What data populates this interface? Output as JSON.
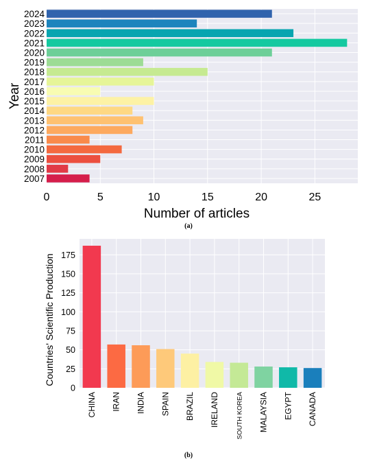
{
  "chart_data": [
    {
      "type": "bar",
      "orientation": "horizontal",
      "panel_label": "(a)",
      "title": "",
      "xlabel": "Number of articles",
      "ylabel": "Year",
      "categories": [
        "2024",
        "2023",
        "2022",
        "2021",
        "2020",
        "2019",
        "2018",
        "2017",
        "2016",
        "2015",
        "2014",
        "2013",
        "2012",
        "2011",
        "2010",
        "2009",
        "2008",
        "2007"
      ],
      "values": [
        21,
        14,
        23,
        28,
        21,
        9,
        15,
        10,
        5,
        10,
        8,
        9,
        8,
        4,
        7,
        5,
        2,
        4
      ],
      "colors": [
        "#3063ad",
        "#1d84bd",
        "#08a5b0",
        "#14c9a0",
        "#6dcf98",
        "#9ddc95",
        "#c6ea91",
        "#e6f598",
        "#f8fcb2",
        "#fdf2a5",
        "#fed883",
        "#fec171",
        "#fda95f",
        "#f98a4b",
        "#f4693f",
        "#ec4f3f",
        "#e13a46",
        "#d51e4b"
      ],
      "xlim": [
        0,
        29
      ],
      "xticks": [
        0,
        5,
        10,
        15,
        20,
        25
      ],
      "grid": true
    },
    {
      "type": "bar",
      "orientation": "vertical",
      "panel_label": "(b)",
      "title": "",
      "xlabel": "",
      "ylabel": "Countries' Scientific Production",
      "categories": [
        "CHINA",
        "IRAN",
        "INDIA",
        "SPAIN",
        "BRAZIL",
        "IRELAND",
        "SOUTH KOREA",
        "MALAYSIA",
        "EGYPT",
        "CANADA"
      ],
      "values": [
        187,
        57,
        56,
        51,
        45,
        34,
        33,
        28,
        27,
        26
      ],
      "colors": [
        "#f2394f",
        "#fc6a43",
        "#fd9b58",
        "#fec97a",
        "#fdf0a3",
        "#f0f9a6",
        "#c4e996",
        "#7fd3a1",
        "#10b9a8",
        "#1a7fbc"
      ],
      "ylim": [
        0,
        196
      ],
      "yticks": [
        0,
        25,
        50,
        75,
        100,
        125,
        150,
        175
      ],
      "grid": true
    }
  ]
}
